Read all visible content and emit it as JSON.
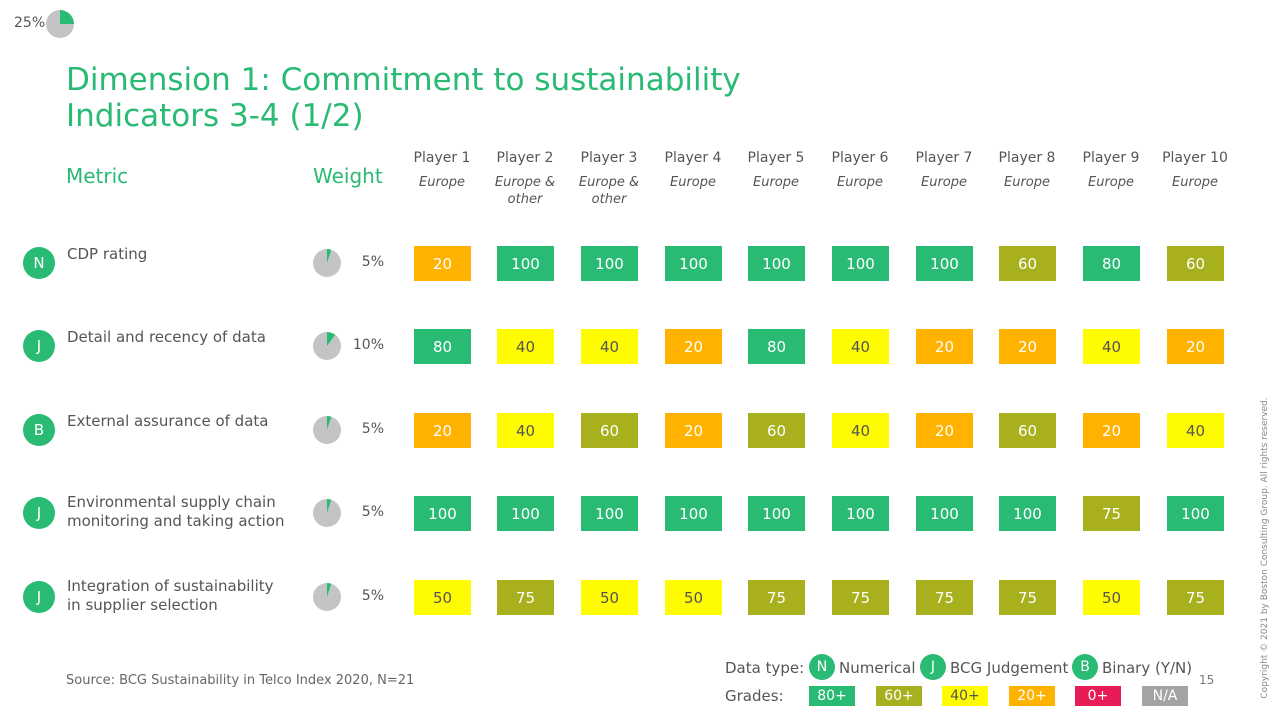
{
  "progress": {
    "label": "25%",
    "value": 0.25
  },
  "title": {
    "line1": "Dimension 1: Commitment to sustainability",
    "line2": "Indicators 3-4 (1/2)"
  },
  "headers": {
    "metric": "Metric",
    "weight": "Weight"
  },
  "players": [
    {
      "name": "Player 1",
      "region": "Europe"
    },
    {
      "name": "Player 2",
      "region": "Europe & other"
    },
    {
      "name": "Player 3",
      "region": "Europe & other"
    },
    {
      "name": "Player 4",
      "region": "Europe"
    },
    {
      "name": "Player 5",
      "region": "Europe"
    },
    {
      "name": "Player 6",
      "region": "Europe"
    },
    {
      "name": "Player 7",
      "region": "Europe"
    },
    {
      "name": "Player 8",
      "region": "Europe"
    },
    {
      "name": "Player 9",
      "region": "Europe"
    },
    {
      "name": "Player 10",
      "region": "Europe"
    }
  ],
  "metrics": [
    {
      "type": "N",
      "line1": "CDP rating",
      "line2": "",
      "weight_label": "5%",
      "weight": 0.05,
      "scores": [
        "20",
        "100",
        "100",
        "100",
        "100",
        "100",
        "100",
        "60",
        "80",
        "60"
      ]
    },
    {
      "type": "J",
      "line1": "Detail and recency of data",
      "line2": "",
      "weight_label": "10%",
      "weight": 0.1,
      "scores": [
        "80",
        "40",
        "40",
        "20",
        "80",
        "40",
        "20",
        "20",
        "40",
        "20"
      ]
    },
    {
      "type": "B",
      "line1": "External assurance of data",
      "line2": "",
      "weight_label": "5%",
      "weight": 0.05,
      "scores": [
        "20",
        "40",
        "60",
        "20",
        "60",
        "40",
        "20",
        "60",
        "20",
        "40"
      ]
    },
    {
      "type": "J",
      "line1": "Environmental supply chain",
      "line2": "monitoring and taking action",
      "weight_label": "5%",
      "weight": 0.05,
      "scores": [
        "100",
        "100",
        "100",
        "100",
        "100",
        "100",
        "100",
        "100",
        "75",
        "100"
      ]
    },
    {
      "type": "J",
      "line1": "Integration of sustainability",
      "line2": "in supplier selection",
      "weight_label": "5%",
      "weight": 0.05,
      "scores": [
        "50",
        "75",
        "50",
        "50",
        "75",
        "75",
        "75",
        "75",
        "50",
        "75"
      ]
    }
  ],
  "source": "Source: BCG Sustainability in Telco Index 2020, N=21",
  "legend": {
    "data_type_label": "Data type:",
    "types": [
      {
        "badge": "N",
        "text": "Numerical"
      },
      {
        "badge": "J",
        "text": "BCG Judgement"
      },
      {
        "badge": "B",
        "text": "Binary (Y/N)"
      }
    ],
    "grades_label": "Grades:",
    "grades": [
      {
        "label": "80+",
        "color": "#29ba74",
        "text_color": "#ffffff"
      },
      {
        "label": "60+",
        "color": "#a8b11d",
        "text_color": "#ffffff"
      },
      {
        "label": "40+",
        "color": "#fffb00",
        "text_color": "#555555"
      },
      {
        "label": "20+",
        "color": "#ffb300",
        "text_color": "#ffffff"
      },
      {
        "label": "0+",
        "color": "#e71c57",
        "text_color": "#ffffff"
      },
      {
        "label": "N/A",
        "color": "#a3a3a3",
        "text_color": "#ffffff"
      }
    ]
  },
  "page_number": "15",
  "copyright": "Copyright © 2021 by Boston Consulting Group. All rights reserved.",
  "colors": {
    "accent": "#29ba74",
    "pie_bg": "#c4c4c4"
  }
}
